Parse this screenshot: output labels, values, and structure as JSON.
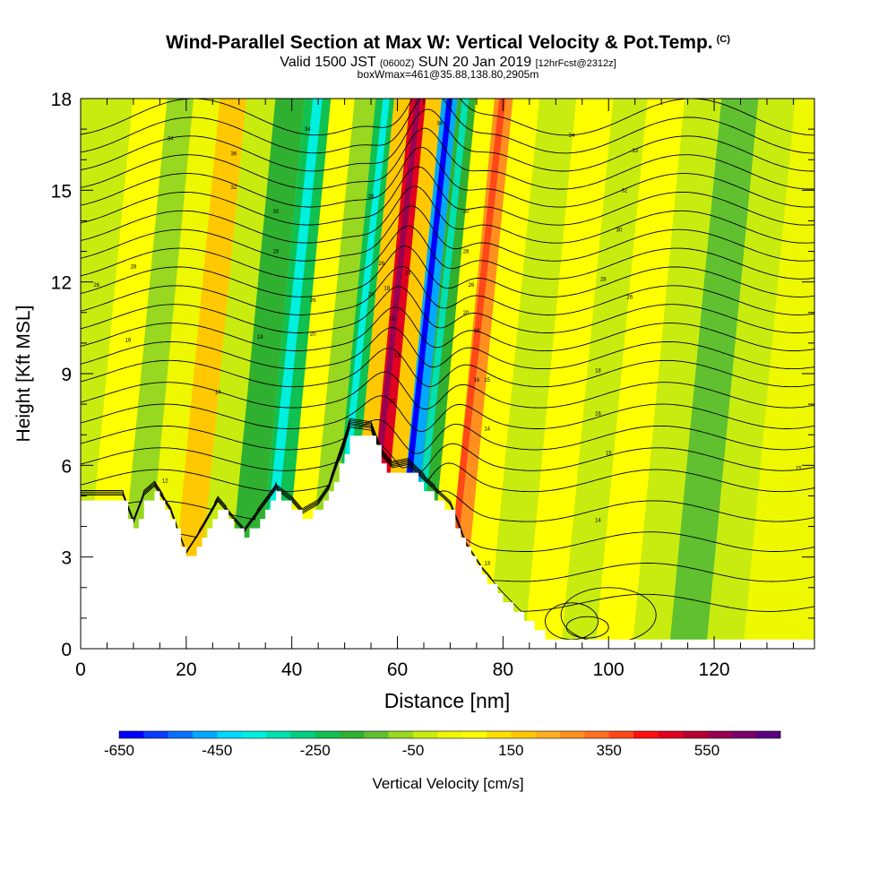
{
  "header": {
    "title": "Wind-Parallel Section at Max W: Vertical Velocity & Pot.Temp.",
    "copyright": "(C)",
    "subtitle_main_1": "Valid 1500 JST",
    "subtitle_small_1": "(0600Z)",
    "subtitle_main_2": "SUN 20 Jan 2019",
    "subtitle_small_2": "[12hrFcst@2312z]",
    "boxline": "boxWmax=461@35.88,138.80,2905m"
  },
  "chart_data": {
    "type": "heatmap",
    "title": "Wind-Parallel Section at Max W: Vertical Velocity & Pot.Temp.",
    "xlabel": "Distance [nm]",
    "ylabel": "Height [Kft MSL]",
    "xlim": [
      0,
      139
    ],
    "ylim": [
      0,
      18
    ],
    "x_ticks": [
      "0",
      "20",
      "40",
      "60",
      "80",
      "100",
      "120"
    ],
    "y_ticks": [
      "0",
      "3",
      "6",
      "9",
      "12",
      "15",
      "18"
    ],
    "colorbar": {
      "label": "Vertical Velocity [cm/s]",
      "tick_labels": [
        "-650",
        "-450",
        "-250",
        "-50",
        "150",
        "350",
        "550"
      ],
      "colors": [
        "#0000ff",
        "#0a3cff",
        "#0a70ff",
        "#00a8ff",
        "#00d8ff",
        "#00f0e0",
        "#00e0b0",
        "#00d080",
        "#10c050",
        "#30b030",
        "#60c030",
        "#98d820",
        "#c8ec10",
        "#eef800",
        "#ffff00",
        "#ffe000",
        "#ffc800",
        "#ffb020",
        "#ff9020",
        "#ff7020",
        "#ff4818",
        "#ff1010",
        "#e00020",
        "#b80030",
        "#980050",
        "#7a006a",
        "#5a0080"
      ]
    },
    "w_columns": [
      {
        "x": 2,
        "w": -60
      },
      {
        "x": 10,
        "w": 50
      },
      {
        "x": 15,
        "w": -120
      },
      {
        "x": 20,
        "w": 20
      },
      {
        "x": 25,
        "w": 130
      },
      {
        "x": 30,
        "w": -60
      },
      {
        "x": 36,
        "w": -180
      },
      {
        "x": 41,
        "w": -230
      },
      {
        "x": 46,
        "w": 60
      },
      {
        "x": 50,
        "w": -120
      },
      {
        "x": 54,
        "w": -260
      },
      {
        "x": 57,
        "w": 160
      },
      {
        "x": 60,
        "w": 461
      },
      {
        "x": 63,
        "w": 150
      },
      {
        "x": 66,
        "w": -480
      },
      {
        "x": 69,
        "w": -220
      },
      {
        "x": 73,
        "w": 60
      },
      {
        "x": 76,
        "w": 230
      },
      {
        "x": 80,
        "w": 70
      },
      {
        "x": 86,
        "w": -60
      },
      {
        "x": 94,
        "w": 30
      },
      {
        "x": 100,
        "w": -50
      },
      {
        "x": 107,
        "w": 40
      },
      {
        "x": 114,
        "w": -40
      },
      {
        "x": 121,
        "w": -130
      },
      {
        "x": 128,
        "w": -60
      },
      {
        "x": 135,
        "w": 20
      }
    ],
    "terrain_kft": [
      {
        "x": 0,
        "h": 4.8
      },
      {
        "x": 8,
        "h": 4.8
      },
      {
        "x": 10,
        "h": 3.9
      },
      {
        "x": 12,
        "h": 4.8
      },
      {
        "x": 14,
        "h": 5.1
      },
      {
        "x": 17,
        "h": 4.3
      },
      {
        "x": 20,
        "h": 2.9
      },
      {
        "x": 23,
        "h": 3.7
      },
      {
        "x": 26,
        "h": 4.6
      },
      {
        "x": 28,
        "h": 4.2
      },
      {
        "x": 31,
        "h": 3.6
      },
      {
        "x": 34,
        "h": 4.3
      },
      {
        "x": 37,
        "h": 5.0
      },
      {
        "x": 40,
        "h": 4.6
      },
      {
        "x": 42,
        "h": 4.2
      },
      {
        "x": 45,
        "h": 4.5
      },
      {
        "x": 47,
        "h": 5.0
      },
      {
        "x": 50,
        "h": 6.5
      },
      {
        "x": 51,
        "h": 7.1
      },
      {
        "x": 55,
        "h": 7.0
      },
      {
        "x": 57,
        "h": 6.1
      },
      {
        "x": 59,
        "h": 5.7
      },
      {
        "x": 62,
        "h": 5.8
      },
      {
        "x": 65,
        "h": 5.3
      },
      {
        "x": 70,
        "h": 4.5
      },
      {
        "x": 73,
        "h": 3.2
      },
      {
        "x": 76,
        "h": 2.4
      },
      {
        "x": 80,
        "h": 1.6
      },
      {
        "x": 84,
        "h": 0.9
      },
      {
        "x": 87,
        "h": 0.5
      },
      {
        "x": 89,
        "h": 0.3
      },
      {
        "x": 139,
        "h": 0.3
      }
    ],
    "theta_contours_kft": [
      1.5,
      2.5,
      3.5,
      4.5,
      5.5,
      6.2,
      6.9,
      7.6,
      8.3,
      9.0,
      9.6,
      10.2,
      10.8,
      11.4,
      12.0,
      12.6,
      13.2,
      13.8,
      14.4,
      15.0,
      15.6,
      16.2,
      16.8,
      17.4
    ],
    "contour_labels": [
      {
        "x": 17,
        "y": 16.7,
        "text": "34"
      },
      {
        "x": 29,
        "y": 16.2,
        "text": "36"
      },
      {
        "x": 29,
        "y": 15.1,
        "text": "32"
      },
      {
        "x": 43,
        "y": 17.0,
        "text": "34"
      },
      {
        "x": 37,
        "y": 14.3,
        "text": "30"
      },
      {
        "x": 37,
        "y": 13.0,
        "text": "28"
      },
      {
        "x": 10,
        "y": 12.5,
        "text": "28"
      },
      {
        "x": 3,
        "y": 11.9,
        "text": "26"
      },
      {
        "x": 44,
        "y": 11.4,
        "text": "26"
      },
      {
        "x": 34,
        "y": 10.2,
        "text": "18"
      },
      {
        "x": 9,
        "y": 10.1,
        "text": "16"
      },
      {
        "x": 44,
        "y": 10.3,
        "text": "20"
      },
      {
        "x": 26,
        "y": 8.4,
        "text": "14"
      },
      {
        "x": 16,
        "y": 5.5,
        "text": "12"
      },
      {
        "x": 55,
        "y": 14.8,
        "text": "28"
      },
      {
        "x": 57,
        "y": 12.6,
        "text": "26"
      },
      {
        "x": 55,
        "y": 11.6,
        "text": "20"
      },
      {
        "x": 58,
        "y": 11.8,
        "text": "18"
      },
      {
        "x": 62,
        "y": 12.3,
        "text": "24"
      },
      {
        "x": 59,
        "y": 10.8,
        "text": "16"
      },
      {
        "x": 60,
        "y": 9.6,
        "text": "14"
      },
      {
        "x": 59,
        "y": 8.1,
        "text": "12"
      },
      {
        "x": 68,
        "y": 17.2,
        "text": "34"
      },
      {
        "x": 73,
        "y": 14.3,
        "text": "30"
      },
      {
        "x": 73,
        "y": 13.0,
        "text": "28"
      },
      {
        "x": 74,
        "y": 11.9,
        "text": "26"
      },
      {
        "x": 73,
        "y": 11.0,
        "text": "20"
      },
      {
        "x": 75,
        "y": 10.4,
        "text": "18"
      },
      {
        "x": 75,
        "y": 8.8,
        "text": "16"
      },
      {
        "x": 77,
        "y": 8.8,
        "text": "15"
      },
      {
        "x": 77,
        "y": 7.2,
        "text": "14"
      },
      {
        "x": 77,
        "y": 2.8,
        "text": "13"
      },
      {
        "x": 93,
        "y": 16.8,
        "text": "34"
      },
      {
        "x": 105,
        "y": 16.3,
        "text": "33"
      },
      {
        "x": 103,
        "y": 15.0,
        "text": "32"
      },
      {
        "x": 102,
        "y": 13.7,
        "text": "30"
      },
      {
        "x": 99,
        "y": 12.1,
        "text": "28"
      },
      {
        "x": 104,
        "y": 11.5,
        "text": "26"
      },
      {
        "x": 98,
        "y": 9.1,
        "text": "18"
      },
      {
        "x": 98,
        "y": 7.7,
        "text": "16"
      },
      {
        "x": 100,
        "y": 6.4,
        "text": "15"
      },
      {
        "x": 98,
        "y": 4.2,
        "text": "14"
      },
      {
        "x": 136,
        "y": 5.9,
        "text": "15"
      }
    ]
  }
}
